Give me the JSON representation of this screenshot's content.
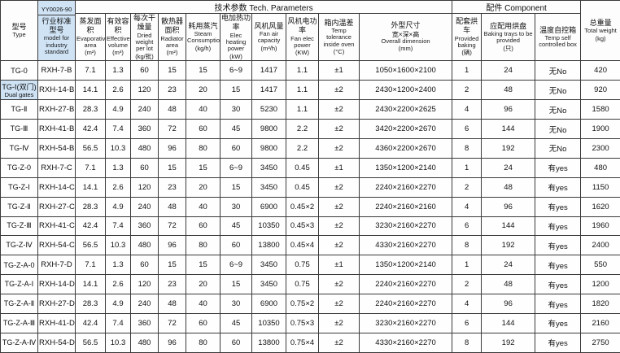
{
  "colors": {
    "highlight": "#cfe3f5",
    "border": "#3a3a3a",
    "background": "#ffffff"
  },
  "header": {
    "type": {
      "cn": "型号",
      "en": "Type"
    },
    "model": {
      "top": "YY0026-90",
      "cn": "行业标准型号",
      "en": "model for industry standard"
    },
    "tech_group": "技术参数 Tech. Parameters",
    "component_group": "配件 Component",
    "weight": {
      "cn": "总重量",
      "en": "Total weight",
      "unit": "(kg)"
    },
    "columns": [
      {
        "key": "evaporative-area",
        "cn": "蒸发面积",
        "en": "Evaporative area",
        "unit": "(m²)"
      },
      {
        "key": "effective-volume",
        "cn": "有效容积",
        "en": "Effective volume",
        "unit": "(m³)"
      },
      {
        "key": "dried-weight-per-lot",
        "cn": "每次干燥量",
        "en": "Dried weight per lot",
        "unit": "(kg/批)"
      },
      {
        "key": "radiator-area",
        "cn": "散热器面积",
        "en": "Radiator area",
        "unit": "(m²)"
      },
      {
        "key": "steam-consumption",
        "cn": "耗用蒸汽",
        "en": "Steam Consumption",
        "unit": "(kg/h)"
      },
      {
        "key": "elec-heating-power",
        "cn": "电加热功率",
        "en": "Elec heating power",
        "unit": "(kW)"
      },
      {
        "key": "fan-air-capacity",
        "cn": "风机风量",
        "en": "Fan air capacity",
        "unit": "(m³/h)"
      },
      {
        "key": "fan-elec-power",
        "cn": "风机电功率",
        "en": "Fan elec power",
        "unit": "(KW)"
      },
      {
        "key": "temp-tolerance",
        "cn": "箱内温差",
        "en": "Temp tolerance inside oven",
        "unit": "(°C)"
      },
      {
        "key": "overall-dimension",
        "cn": "外型尺寸",
        "cn2": "宽×深×高",
        "en": "Overall dimension",
        "unit": "(mm)"
      },
      {
        "key": "baking-carts",
        "cn": "配套烘车",
        "en": "Provided baking",
        "unit": "(辆)"
      },
      {
        "key": "baking-trays",
        "cn": "应配用烘盘",
        "en": "Baking trays to be provided",
        "unit": "(只)"
      },
      {
        "key": "temp-control-box",
        "cn": "温度自控箱",
        "en": "Temp self controlled box",
        "unit": ""
      }
    ]
  },
  "rows": [
    {
      "type": "TG-0",
      "sub": "",
      "highlight": false,
      "model": "RXH-7-B",
      "values": [
        "7.1",
        "1.3",
        "60",
        "15",
        "15",
        "6~9",
        "1417",
        "1.1",
        "±1",
        "1050×1600×2100",
        "1",
        "24",
        "无No",
        "420"
      ]
    },
    {
      "type": "TG-Ⅰ(双门)",
      "sub": "Dual gates",
      "highlight": true,
      "model": "RXH-14-B",
      "values": [
        "14.1",
        "2.6",
        "120",
        "23",
        "20",
        "15",
        "1417",
        "1.1",
        "±2",
        "2430×1200×2400",
        "2",
        "48",
        "无No",
        "920"
      ]
    },
    {
      "type": "TG-Ⅱ",
      "sub": "",
      "highlight": false,
      "model": "RXH-27-B",
      "values": [
        "28.3",
        "4.9",
        "240",
        "48",
        "40",
        "30",
        "5230",
        "1.1",
        "±2",
        "2430×2200×2625",
        "4",
        "96",
        "无No",
        "1580"
      ]
    },
    {
      "type": "TG-Ⅲ",
      "sub": "",
      "highlight": false,
      "model": "RXH-41-B",
      "values": [
        "42.4",
        "7.4",
        "360",
        "72",
        "60",
        "45",
        "9800",
        "2.2",
        "±2",
        "3420×2200×2670",
        "6",
        "144",
        "无No",
        "1900"
      ]
    },
    {
      "type": "TG-Ⅳ",
      "sub": "",
      "highlight": false,
      "model": "RXH-54-B",
      "values": [
        "56.5",
        "10.3",
        "480",
        "96",
        "80",
        "60",
        "9800",
        "2.2",
        "±2",
        "4360×2200×2670",
        "8",
        "192",
        "无No",
        "2300"
      ]
    },
    {
      "type": "TG-Z-0",
      "sub": "",
      "highlight": false,
      "model": "RXH-7-C",
      "values": [
        "7.1",
        "1.3",
        "60",
        "15",
        "15",
        "6~9",
        "3450",
        "0.45",
        "±1",
        "1350×1200×2140",
        "1",
        "24",
        "有yes",
        "480"
      ]
    },
    {
      "type": "TG-Z-Ⅰ",
      "sub": "",
      "highlight": false,
      "model": "RXH-14-C",
      "values": [
        "14.1",
        "2.6",
        "120",
        "23",
        "20",
        "15",
        "3450",
        "0.45",
        "±2",
        "2240×2160×2270",
        "2",
        "48",
        "有yes",
        "1150"
      ]
    },
    {
      "type": "TG-Z-Ⅱ",
      "sub": "",
      "highlight": false,
      "model": "RXH-27-C",
      "values": [
        "28.3",
        "4.9",
        "240",
        "48",
        "40",
        "30",
        "6900",
        "0.45×2",
        "±2",
        "2240×2160×2160",
        "4",
        "96",
        "有yes",
        "1620"
      ]
    },
    {
      "type": "TG-Z-Ⅲ",
      "sub": "",
      "highlight": false,
      "model": "RXH-41-C",
      "values": [
        "42.4",
        "7.4",
        "360",
        "72",
        "60",
        "45",
        "10350",
        "0.45×3",
        "±2",
        "3230×2160×2270",
        "6",
        "144",
        "有yes",
        "1960"
      ]
    },
    {
      "type": "TG-Z-Ⅳ",
      "sub": "",
      "highlight": false,
      "model": "RXH-54-C",
      "values": [
        "56.5",
        "10.3",
        "480",
        "96",
        "80",
        "60",
        "13800",
        "0.45×4",
        "±2",
        "4330×2160×2270",
        "8",
        "192",
        "有yes",
        "2400"
      ]
    },
    {
      "type": "TG-Z-A-0",
      "sub": "",
      "highlight": false,
      "model": "RXH-7-D",
      "values": [
        "7.1",
        "1.3",
        "60",
        "15",
        "15",
        "6~9",
        "3450",
        "0.75",
        "±1",
        "1350×1200×2140",
        "1",
        "24",
        "有yes",
        "550"
      ]
    },
    {
      "type": "TG-Z-A-Ⅰ",
      "sub": "",
      "highlight": false,
      "model": "RXH-14-D",
      "values": [
        "14.1",
        "2.6",
        "120",
        "23",
        "20",
        "15",
        "3450",
        "0.75",
        "±2",
        "2240×2160×2270",
        "2",
        "48",
        "有yes",
        "1200"
      ]
    },
    {
      "type": "TG-Z-A-Ⅱ",
      "sub": "",
      "highlight": false,
      "model": "RXH-27-D",
      "values": [
        "28.3",
        "4.9",
        "240",
        "48",
        "40",
        "30",
        "6900",
        "0.75×2",
        "±2",
        "2240×2160×2270",
        "4",
        "96",
        "有yes",
        "1820"
      ]
    },
    {
      "type": "TG-Z-A-Ⅲ",
      "sub": "",
      "highlight": false,
      "model": "RXH-41-D",
      "values": [
        "42.4",
        "7.4",
        "360",
        "72",
        "60",
        "45",
        "10350",
        "0.75×3",
        "±2",
        "3230×2160×2270",
        "6",
        "144",
        "有yes",
        "2160"
      ]
    },
    {
      "type": "TG-Z-A-Ⅳ",
      "sub": "",
      "highlight": false,
      "model": "RXH-54-D",
      "values": [
        "56.5",
        "10.3",
        "480",
        "96",
        "80",
        "60",
        "13800",
        "0.75×4",
        "±2",
        "4330×2160×2270",
        "8",
        "192",
        "有yes",
        "2750"
      ]
    }
  ]
}
